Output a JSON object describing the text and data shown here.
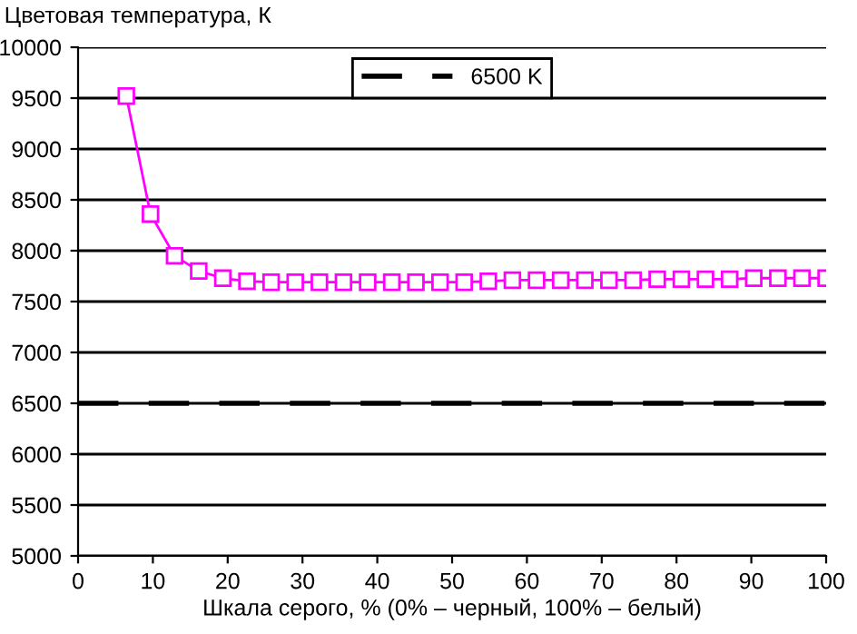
{
  "chart_data": {
    "type": "line",
    "ylabel": "Цветовая температура, К",
    "xlabel": "Шкала серого, % (0% – черный, 100% – белый)",
    "x": [
      6.45,
      9.68,
      12.9,
      16.13,
      19.35,
      22.58,
      25.81,
      29.03,
      32.26,
      35.48,
      38.71,
      41.94,
      45.16,
      48.39,
      51.61,
      54.84,
      58.06,
      61.29,
      64.52,
      67.74,
      70.97,
      74.19,
      77.42,
      80.65,
      83.87,
      87.1,
      90.32,
      93.55,
      96.77,
      100
    ],
    "series": [
      {
        "color": "#ff00ff",
        "values": [
          9520,
          8360,
          7950,
          7800,
          7730,
          7700,
          7690,
          7690,
          7690,
          7690,
          7690,
          7690,
          7690,
          7690,
          7690,
          7700,
          7710,
          7710,
          7710,
          7710,
          7710,
          7710,
          7720,
          7720,
          7720,
          7720,
          7730,
          7730,
          7730,
          7730
        ]
      }
    ],
    "marker": "square",
    "line_style": "solid",
    "ref_lines": [
      {
        "axis": "y",
        "value": 6500,
        "label": "6500 K",
        "color": "#000000",
        "line_style": "dashed"
      }
    ],
    "xlim": [
      0,
      100
    ],
    "xticks": [
      0,
      10,
      20,
      30,
      40,
      50,
      60,
      70,
      80,
      90,
      100
    ],
    "ylim": [
      5000,
      10000
    ],
    "yticks": [
      5000,
      5500,
      6000,
      6500,
      7000,
      7500,
      8000,
      8500,
      9000,
      9500,
      10000
    ],
    "grid": "y",
    "legend": "top"
  }
}
